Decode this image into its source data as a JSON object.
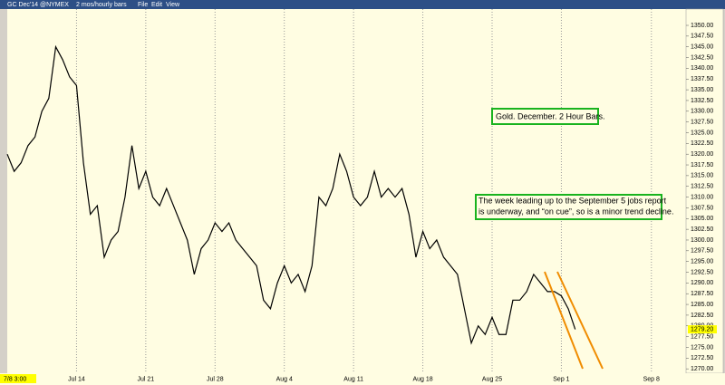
{
  "toolbar": {
    "symbol": "GC Dec'14 @NYMEX",
    "interval": "2 mos/hourly bars",
    "menus": [
      "File",
      "Edit",
      "View"
    ]
  },
  "chart_data": {
    "type": "line",
    "color": "#000000",
    "grid": "x",
    "categories": [
      "7/8 3:00",
      null,
      null,
      null,
      null,
      null,
      null,
      null,
      null,
      null,
      "Jul 14",
      null,
      null,
      null,
      null,
      null,
      null,
      null,
      null,
      null,
      "Jul 21",
      null,
      null,
      null,
      null,
      null,
      null,
      null,
      null,
      null,
      "Jul 28",
      null,
      null,
      null,
      null,
      null,
      null,
      null,
      null,
      null,
      "Aug 4",
      null,
      null,
      null,
      null,
      null,
      null,
      null,
      null,
      null,
      "Aug 11",
      null,
      null,
      null,
      null,
      null,
      null,
      null,
      null,
      null,
      "Aug 18",
      null,
      null,
      null,
      null,
      null,
      null,
      null,
      null,
      null,
      "Aug 25",
      null,
      null,
      null,
      null,
      null,
      null,
      null,
      null,
      null,
      "Sep 1",
      null,
      null,
      null,
      null,
      null,
      null,
      null,
      null,
      null,
      null,
      null,
      null,
      "Sep 8",
      null,
      null,
      null,
      null
    ],
    "values": [
      1320,
      1316,
      1318,
      1322,
      1324,
      1330,
      1333,
      1345,
      1342,
      1338,
      1336,
      1318,
      1306,
      1308,
      1296,
      1300,
      1302,
      1310,
      1322,
      1312,
      1316,
      1310,
      1308,
      1312,
      1308,
      1304,
      1300,
      1292,
      1298,
      1300,
      1304,
      1302,
      1304,
      1300,
      1298,
      1296,
      1294,
      1286,
      1284,
      1290,
      1294,
      1290,
      1292,
      1288,
      1294,
      1310,
      1308,
      1312,
      1320,
      1316,
      1310,
      1308,
      1310,
      1316,
      1310,
      1312,
      1310,
      1312,
      1306,
      1296,
      1302,
      1298,
      1300,
      1296,
      1294,
      1292,
      1284,
      1276,
      1280,
      1278,
      1282,
      1278,
      1278,
      1286,
      1286,
      1288,
      1292,
      1290,
      1288,
      1288,
      1287,
      1284,
      1279.2,
      null,
      null,
      null,
      null,
      null,
      null,
      null,
      null,
      null,
      null,
      null,
      null,
      null,
      null,
      null
    ],
    "ylim": [
      1269.4,
      1353.8
    ],
    "yticks": [
      {
        "value": 1270,
        "label": "1270.00"
      },
      {
        "value": 1272.5,
        "label": "1272.50"
      },
      {
        "value": 1275,
        "label": "1275.00"
      },
      {
        "value": 1277.5,
        "label": "1277.50"
      },
      {
        "value": 1280,
        "label": "1280.00"
      },
      {
        "value": 1282.5,
        "label": "1282.50"
      },
      {
        "value": 1285,
        "label": "1285.00"
      },
      {
        "value": 1287.5,
        "label": "1287.50"
      },
      {
        "value": 1290,
        "label": "1290.00"
      },
      {
        "value": 1292.5,
        "label": "1292.50"
      },
      {
        "value": 1295,
        "label": "1295.00"
      },
      {
        "value": 1297.5,
        "label": "1297.50"
      },
      {
        "value": 1300,
        "label": "1300.00"
      },
      {
        "value": 1302.5,
        "label": "1302.50"
      },
      {
        "value": 1305,
        "label": "1305.00"
      },
      {
        "value": 1307.5,
        "label": "1307.50"
      },
      {
        "value": 1310,
        "label": "1310.00"
      },
      {
        "value": 1312.5,
        "label": "1312.50"
      },
      {
        "value": 1315,
        "label": "1315.00"
      },
      {
        "value": 1317.5,
        "label": "1317.50"
      },
      {
        "value": 1320,
        "label": "1320.00"
      },
      {
        "value": 1322.5,
        "label": "1322.50"
      },
      {
        "value": 1325,
        "label": "1325.00"
      },
      {
        "value": 1327.5,
        "label": "1327.50"
      },
      {
        "value": 1330,
        "label": "1330.00"
      },
      {
        "value": 1332.5,
        "label": "1332.50"
      },
      {
        "value": 1335,
        "label": "1335.00"
      },
      {
        "value": 1337.5,
        "label": "1337.50"
      },
      {
        "value": 1340,
        "label": "1340.00"
      },
      {
        "value": 1342.5,
        "label": "1342.50"
      },
      {
        "value": 1345,
        "label": "1345.00"
      },
      {
        "value": 1347.5,
        "label": "1347.50"
      },
      {
        "value": 1350,
        "label": "1350.00"
      }
    ],
    "last_price": {
      "value": 1279.2,
      "label": "1279.20"
    },
    "annotations": [
      {
        "lines": [
          "Gold. December. 2 Hour Bars."
        ]
      },
      {
        "lines": [
          "The week leading up to the September 5 jobs report",
          "is underway, and “on cue”, so is a minor trend decline."
        ]
      }
    ]
  }
}
